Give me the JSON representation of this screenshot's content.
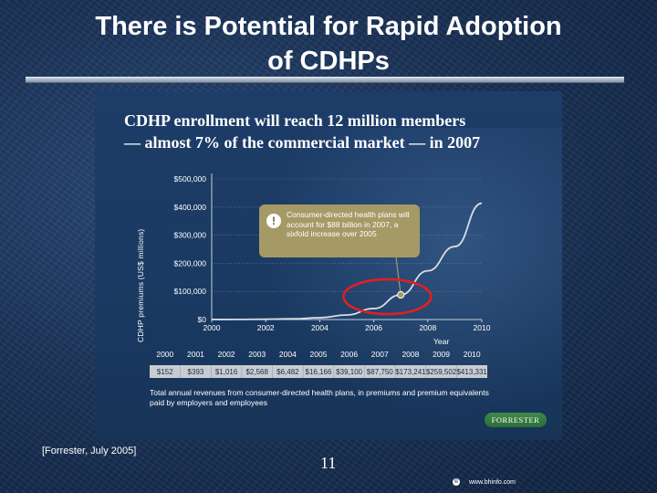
{
  "slide": {
    "title_line1": "There is Potential for Rapid Adoption",
    "title_line2": "of CDHPs",
    "source": "[Forrester, July 2005]",
    "page_number": "11",
    "copyright_symbol": "©",
    "website": "www.bhinfo.com"
  },
  "chart_data": {
    "type": "line",
    "title_line1": "CDHP enrollment will reach 12 million members",
    "title_line2": "— almost 7% of the commercial market — in 2007",
    "xlabel": "Year",
    "ylabel": "CDHP premiums (US$ millions)",
    "x_ticks": [
      "2000",
      "2002",
      "2004",
      "2006",
      "2008",
      "2010"
    ],
    "y_ticks": [
      "$0",
      "$100,000",
      "$200,000",
      "$300,000",
      "$400,000",
      "$500,000"
    ],
    "ylim": [
      0,
      500000
    ],
    "xlim": [
      2000,
      2010
    ],
    "years": [
      2000,
      2001,
      2002,
      2003,
      2004,
      2005,
      2006,
      2007,
      2008,
      2009,
      2010
    ],
    "values": [
      152,
      393,
      1016,
      2568,
      6482,
      16166,
      39100,
      87750,
      173241,
      259502,
      413331
    ],
    "table": {
      "years": [
        "2000",
        "2001",
        "2002",
        "2003",
        "2004",
        "2005",
        "2006",
        "2007",
        "2008",
        "2009",
        "2010"
      ],
      "values": [
        "$152",
        "$393",
        "$1,016",
        "$2,568",
        "$6,482",
        "$16,166",
        "$39,100",
        "$87,750",
        "$173,241",
        "$259,502",
        "$413,331"
      ]
    },
    "highlight_year": 2007,
    "callout_icon": "!",
    "callout": "Consumer-directed health plans will account for $88 billion in 2007, a sixfold increase over 2005",
    "footnote": "Total annual revenues from consumer-directed health plans, in premiums and premium equivalents paid by employers and employees",
    "logo": "FORRESTER",
    "colors": {
      "line": "#d8dde6",
      "grid": "#6f86a6",
      "callout": "#a59a66",
      "highlight_ring": "#e02020",
      "table_band": "#c8ccd2",
      "marker": "#a59a66"
    }
  }
}
